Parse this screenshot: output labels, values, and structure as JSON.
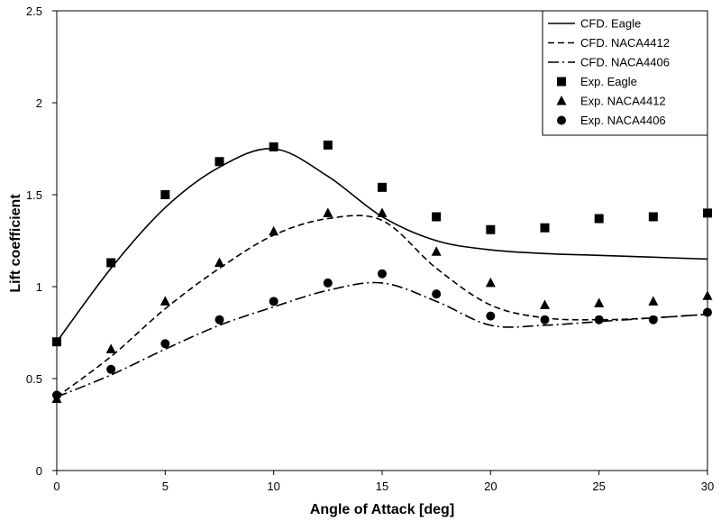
{
  "chart_data": {
    "type": "line",
    "xlabel": "Angle of Attack [deg]",
    "ylabel": "Lift coefficient",
    "xlim": [
      0,
      30
    ],
    "ylim": [
      0,
      2.5
    ],
    "x_ticks": [
      "0",
      "5",
      "10",
      "15",
      "20",
      "25",
      "30"
    ],
    "y_ticks": [
      "0",
      "0.5",
      "1",
      "1.5",
      "2",
      "2.5"
    ],
    "legend_position": "top-right",
    "grid": false,
    "series": [
      {
        "name": "CFD. Eagle",
        "kind": "line",
        "style": "solid",
        "x": [
          0,
          2.5,
          5,
          7.5,
          10,
          12.5,
          15,
          17.5,
          20,
          22.5,
          25,
          27.5,
          30
        ],
        "y": [
          0.7,
          1.1,
          1.43,
          1.65,
          1.75,
          1.6,
          1.38,
          1.25,
          1.2,
          1.18,
          1.17,
          1.16,
          1.15
        ]
      },
      {
        "name": "CFD. NACA4412",
        "kind": "line",
        "style": "dashed",
        "x": [
          0,
          2.5,
          5,
          7.5,
          10,
          12.5,
          15,
          17.5,
          20,
          22.5,
          25,
          27.5,
          30
        ],
        "y": [
          0.4,
          0.62,
          0.88,
          1.1,
          1.28,
          1.37,
          1.36,
          1.1,
          0.9,
          0.83,
          0.82,
          0.83,
          0.85
        ]
      },
      {
        "name": "CFD. NACA4406",
        "kind": "line",
        "style": "dash-dot",
        "x": [
          0,
          2.5,
          5,
          7.5,
          10,
          12.5,
          15,
          17.5,
          20,
          22.5,
          25,
          27.5,
          30
        ],
        "y": [
          0.4,
          0.52,
          0.66,
          0.79,
          0.89,
          0.98,
          1.02,
          0.92,
          0.79,
          0.79,
          0.81,
          0.83,
          0.85
        ]
      },
      {
        "name": "Exp. Eagle",
        "kind": "marker",
        "marker": "square",
        "x": [
          0,
          2.5,
          5,
          7.5,
          10,
          12.5,
          15,
          17.5,
          20,
          22.5,
          25,
          27.5,
          30
        ],
        "y": [
          0.7,
          1.13,
          1.5,
          1.68,
          1.76,
          1.77,
          1.54,
          1.38,
          1.31,
          1.32,
          1.37,
          1.38,
          1.4
        ]
      },
      {
        "name": "Exp. NACA4412",
        "kind": "marker",
        "marker": "triangle",
        "x": [
          0,
          2.5,
          5,
          7.5,
          10,
          12.5,
          15,
          17.5,
          20,
          22.5,
          25,
          27.5,
          30
        ],
        "y": [
          0.39,
          0.66,
          0.92,
          1.13,
          1.3,
          1.4,
          1.4,
          1.19,
          1.02,
          0.9,
          0.91,
          0.92,
          0.95
        ]
      },
      {
        "name": "Exp. NACA4406",
        "kind": "marker",
        "marker": "circle",
        "x": [
          0,
          2.5,
          5,
          7.5,
          10,
          12.5,
          15,
          17.5,
          20,
          22.5,
          25,
          27.5,
          30
        ],
        "y": [
          0.41,
          0.55,
          0.69,
          0.82,
          0.92,
          1.02,
          1.07,
          0.96,
          0.84,
          0.82,
          0.82,
          0.82,
          0.86
        ]
      }
    ]
  }
}
